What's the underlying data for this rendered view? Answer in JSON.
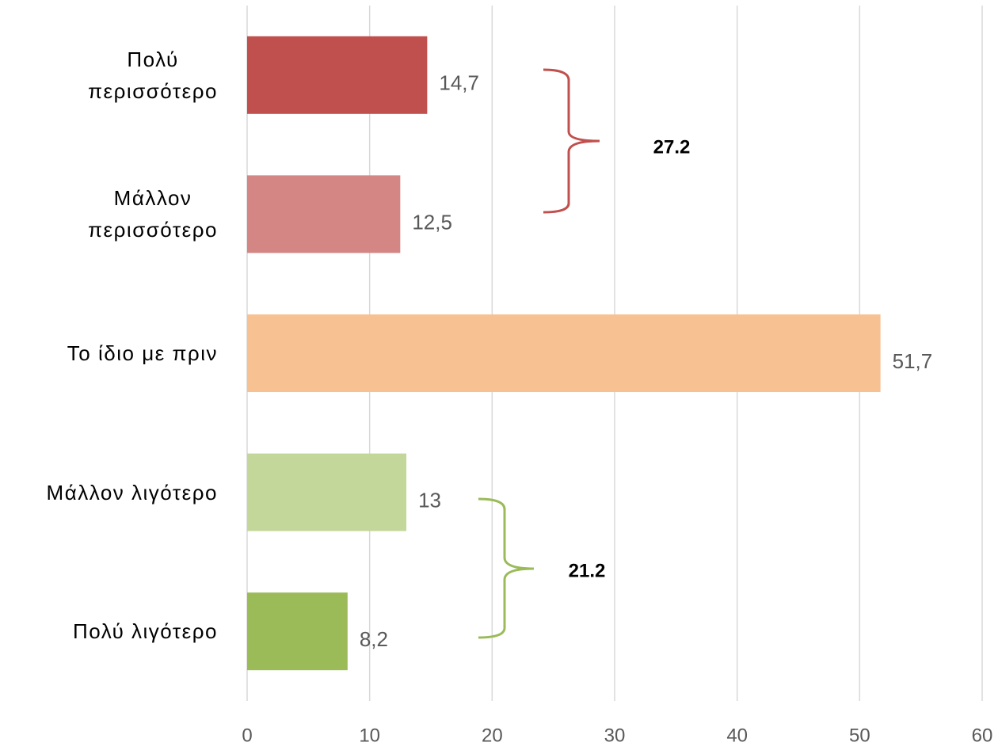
{
  "chart_data": {
    "type": "barh",
    "categories": [
      "Πολύ\nπερισσότερο",
      "Μάλλον\nπερισσότερο",
      "Το ίδιο με πριν",
      "Μάλλον λιγότερο",
      "Πολύ λιγότερο"
    ],
    "values": [
      14.7,
      12.5,
      51.7,
      13,
      8.2
    ],
    "value_labels": [
      "14,7",
      "12,5",
      "51,7",
      "13",
      "8,2"
    ],
    "colors": [
      "#c0504d",
      "#d38683",
      "#f8c191",
      "#c4d79b",
      "#9bbb59"
    ],
    "xlim": [
      0,
      60
    ],
    "xticks": [
      0,
      10,
      20,
      30,
      40,
      50,
      60
    ],
    "grid": true,
    "annotations": [
      {
        "text": "27.2",
        "color": "#c0504d"
      },
      {
        "text": "21.2",
        "color": "#9bbb59"
      }
    ]
  }
}
